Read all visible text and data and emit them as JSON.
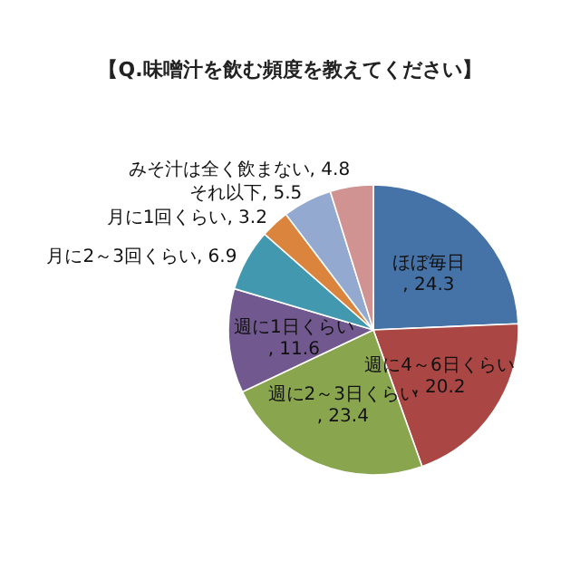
{
  "chart_data": {
    "type": "pie",
    "title": "【Q.味噌汁を飲む頻度を教えてください】",
    "categories": [
      "ほぼ毎日",
      "週に4～6日くらい",
      "週に2～3日くらい",
      "週に1日くらい",
      "月に2～3回くらい",
      "月に1回くらい",
      "それ以下",
      "みそ汁は全く飲まない"
    ],
    "values": [
      24.3,
      20.2,
      23.4,
      11.6,
      6.9,
      3.2,
      5.5,
      4.8
    ],
    "colors": [
      "#4572a7",
      "#aa4643",
      "#89a54e",
      "#71588f",
      "#4198af",
      "#db843d",
      "#93a9cf",
      "#d19392"
    ],
    "value_labels": [
      ", 24.3",
      ", 20.2",
      ", 23.4",
      ", 11.6",
      ", 6.9",
      ", 3.2",
      ", 5.5",
      ", 4.8"
    ]
  }
}
